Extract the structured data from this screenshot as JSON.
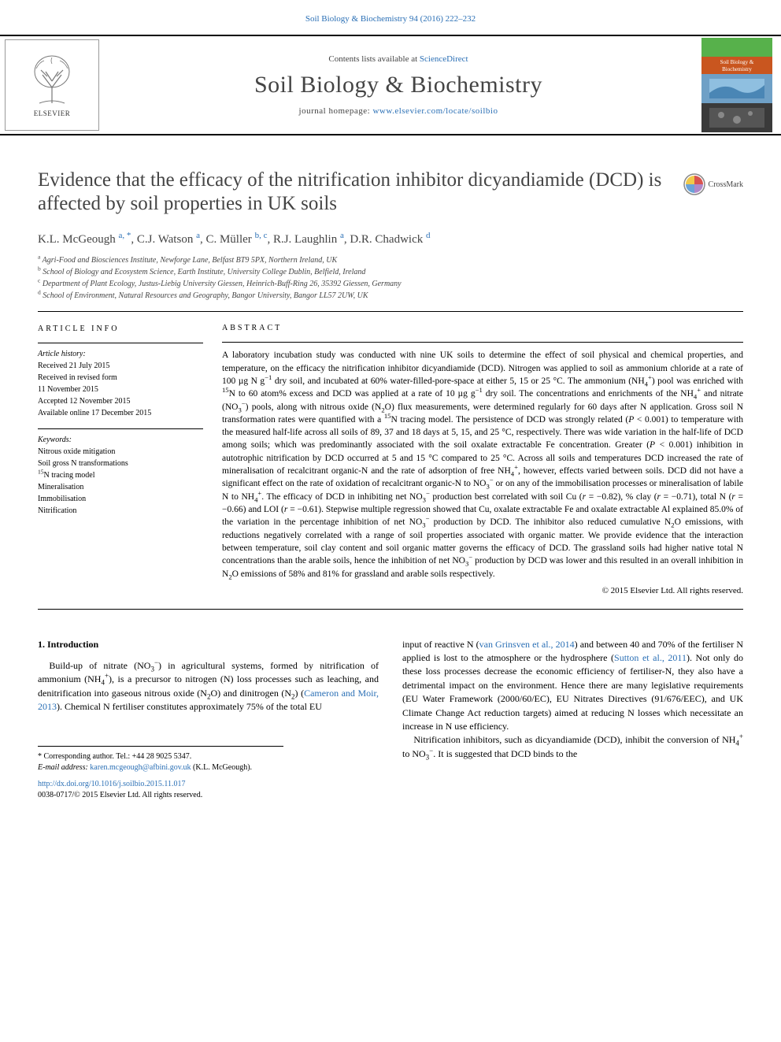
{
  "header": {
    "citation": "Soil Biology & Biochemistry 94 (2016) 222–232",
    "contents_prefix": "Contents lists available at ",
    "contents_link": "ScienceDirect",
    "journal_title": "Soil Biology & Biochemistry",
    "homepage_prefix": "journal homepage: ",
    "homepage_link": "www.elsevier.com/locate/soilbio",
    "elsevier_label": "ELSEVIER",
    "crossmark_label": "CrossMark"
  },
  "cover": {
    "top_color": "#57b14b",
    "title_bg": "#c9561f",
    "title_line1": "Soil Biology &",
    "title_line2": "Biochemistry",
    "panel_top": "#6fa0c6",
    "panel_bottom": "#3a3a3a"
  },
  "title": "Evidence that the efficacy of the nitrification inhibitor dicyandiamide (DCD) is affected by soil properties in UK soils",
  "authors_html": "K.L. McGeough <sup>a, *</sup>, C.J. Watson <sup>a</sup>, C. Müller <sup>b, c</sup>, R.J. Laughlin <sup>a</sup>, D.R. Chadwick <sup>d</sup>",
  "affiliations": [
    "a Agri-Food and Biosciences Institute, Newforge Lane, Belfast BT9 5PX, Northern Ireland, UK",
    "b School of Biology and Ecosystem Science, Earth Institute, University College Dublin, Belfield, Ireland",
    "c Department of Plant Ecology, Justus-Liebig University Giessen, Heinrich-Buff-Ring 26, 35392 Giessen, Germany",
    "d School of Environment, Natural Resources and Geography, Bangor University, Bangor LL57 2UW, UK"
  ],
  "article_info": {
    "heading": "ARTICLE INFO",
    "history_label": "Article history:",
    "history": [
      "Received 21 July 2015",
      "Received in revised form",
      "11 November 2015",
      "Accepted 12 November 2015",
      "Available online 17 December 2015"
    ],
    "keywords_label": "Keywords:",
    "keywords": [
      "Nitrous oxide mitigation",
      "Soil gross N transformations",
      "15N tracing model",
      "Mineralisation",
      "Immobilisation",
      "Nitrification"
    ]
  },
  "abstract": {
    "heading": "ABSTRACT",
    "body_html": "A laboratory incubation study was conducted with nine UK soils to determine the effect of soil physical and chemical properties, and temperature, on the efficacy the nitrification inhibitor dicyandiamide (DCD). Nitrogen was applied to soil as ammonium chloride at a rate of 100 µg N g<sup>−1</sup> dry soil, and incubated at 60% water-filled-pore-space at either 5, 15 or 25 °C. The ammonium (NH<sub>4</sub><sup>+</sup>) pool was enriched with <sup>15</sup>N to 60 atom% excess and DCD was applied at a rate of 10 µg g<sup>−1</sup> dry soil. The concentrations and enrichments of the NH<sub>4</sub><sup>+</sup> and nitrate (NO<sub>3</sub><sup>−</sup>) pools, along with nitrous oxide (N<sub>2</sub>O) flux measurements, were determined regularly for 60 days after N application. Gross soil N transformation rates were quantified with a <sup>15</sup>N tracing model. The persistence of DCD was strongly related (<i>P</i> &lt; 0.001) to temperature with the measured half-life across all soils of 89, 37 and 18 days at 5, 15, and 25 °C, respectively. There was wide variation in the half-life of DCD among soils; which was predominantly associated with the soil oxalate extractable Fe concentration. Greater (<i>P</i> &lt; 0.001) inhibition in autotrophic nitrification by DCD occurred at 5 and 15 °C compared to 25 °C. Across all soils and temperatures DCD increased the rate of mineralisation of recalcitrant organic-N and the rate of adsorption of free NH<sub>4</sub><sup>+</sup>, however, effects varied between soils. DCD did not have a significant effect on the rate of oxidation of recalcitrant organic-N to NO<sub>3</sub><sup>−</sup> or on any of the immobilisation processes or mineralisation of labile N to NH<sub>4</sub><sup>+</sup>. The efficacy of DCD in inhibiting net NO<sub>3</sub><sup>−</sup> production best correlated with soil Cu (<i>r</i> = −0.82), % clay (<i>r</i> = −0.71), total N (<i>r</i> = −0.66) and LOI (<i>r</i> = −0.61). Stepwise multiple regression showed that Cu, oxalate extractable Fe and oxalate extractable Al explained 85.0% of the variation in the percentage inhibition of net NO<sub>3</sub><sup>−</sup> production by DCD. The inhibitor also reduced cumulative N<sub>2</sub>O emissions, with reductions negatively correlated with a range of soil properties associated with organic matter. We provide evidence that the interaction between temperature, soil clay content and soil organic matter governs the efficacy of DCD. The grassland soils had higher native total N concentrations than the arable soils, hence the inhibition of net NO<sub>3</sub><sup>−</sup> production by DCD was lower and this resulted in an overall inhibition in N<sub>2</sub>O emissions of 58% and 81% for grassland and arable soils respectively.",
    "copyright": "© 2015 Elsevier Ltd. All rights reserved."
  },
  "intro": {
    "heading": "1. Introduction",
    "col1_html": "Build-up of nitrate (NO<sub>3</sub><sup>−</sup>) in agricultural systems, formed by nitrification of ammonium (NH<sub>4</sub><sup>+</sup>), is a precursor to nitrogen (N) loss processes such as leaching, and denitrification into gaseous nitrous oxide (N<sub>2</sub>O) and dinitrogen (N<sub>2</sub>) (<a>Cameron and Moir, 2013</a>). Chemical N fertiliser constitutes approximately 75% of the total EU",
    "col2a_html": "input of reactive N (<a>van Grinsven et al., 2014</a>) and between 40 and 70% of the fertiliser N applied is lost to the atmosphere or the hydrosphere (<a>Sutton et al., 2011</a>). Not only do these loss processes decrease the economic efficiency of fertiliser-N, they also have a detrimental impact on the environment. Hence there are many legislative requirements (EU Water Framework (2000/60/EC), EU Nitrates Directives (91/676/EEC), and UK Climate Change Act reduction targets) aimed at reducing N losses which necessitate an increase in N use efficiency.",
    "col2b_html": "Nitrification inhibitors, such as dicyandiamide (DCD), inhibit the conversion of NH<sub>4</sub><sup>+</sup> to NO<sub>3</sub><sup>−</sup>. It is suggested that DCD binds to the"
  },
  "footnote": {
    "line1": "* Corresponding author. Tel.: +44 28 9025 5347.",
    "email_label": "E-mail address: ",
    "email": "karen.mcgeough@afbini.gov.uk",
    "email_suffix": " (K.L. McGeough)."
  },
  "footer": {
    "doi": "http://dx.doi.org/10.1016/j.soilbio.2015.11.017",
    "rights": "0038-0717/© 2015 Elsevier Ltd. All rights reserved."
  }
}
